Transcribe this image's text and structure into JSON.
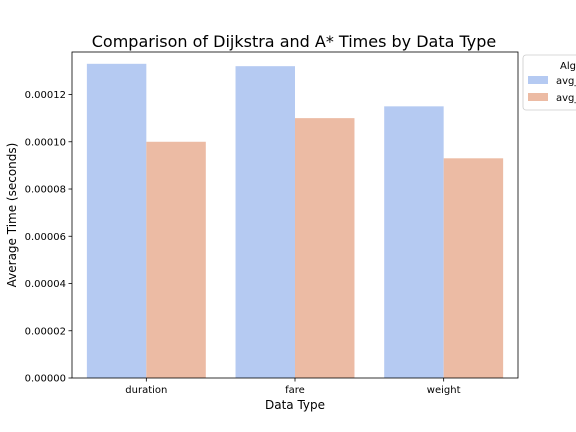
{
  "chart_data": {
    "type": "bar",
    "title": "Comparison of Dijkstra and A* Times by Data Type",
    "xlabel": "Data Type",
    "ylabel": "Average Time (seconds)",
    "categories": [
      "duration",
      "fare",
      "weight"
    ],
    "ylim": [
      0,
      0.000138
    ],
    "yticks": [
      0,
      2e-05,
      4e-05,
      6e-05,
      8e-05,
      0.0001,
      0.00012
    ],
    "ytick_labels": [
      "0.00000",
      "0.00002",
      "0.00004",
      "0.00006",
      "0.00008",
      "0.00010",
      "0.00012"
    ],
    "grid": false,
    "legend": {
      "title": "Alg",
      "placement": "upper right, outside",
      "entries": [
        "avg_",
        "avg_"
      ]
    },
    "series": [
      {
        "legend_label": "avg_",
        "color": "#b5caf2",
        "values": [
          0.000133,
          0.000132,
          0.000115
        ]
      },
      {
        "legend_label": "avg_",
        "color": "#ecbba4",
        "values": [
          0.0001,
          0.00011,
          9.3e-05
        ]
      }
    ]
  }
}
